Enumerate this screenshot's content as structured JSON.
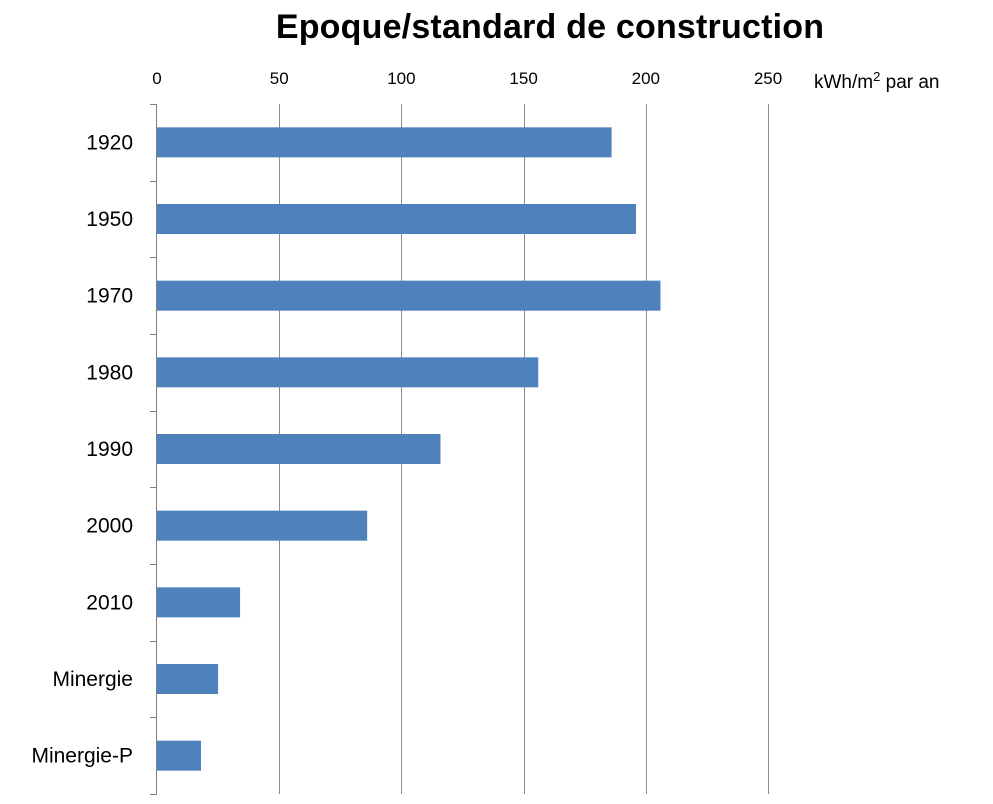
{
  "chart_data": {
    "type": "bar",
    "orientation": "horizontal",
    "title": "Epoque/standard de construction",
    "xlabel": "kWh/m² par an",
    "ylabel": "",
    "categories": [
      "1920",
      "1950",
      "1970",
      "1980",
      "1990",
      "2000",
      "2010",
      "Minergie",
      "Minergie-P"
    ],
    "values": [
      186,
      196,
      206,
      156,
      116,
      86,
      34,
      25,
      18
    ],
    "xlim": [
      0,
      250
    ],
    "x_ticks": [
      0,
      50,
      100,
      150,
      200,
      250
    ],
    "x_axis_position": "top",
    "grid": "vertical",
    "legend": "none",
    "colors": {
      "bar": "#4f81bd",
      "grid": "#8c8c8c",
      "axis": "#7f7f7f"
    }
  },
  "unit_label": {
    "main": "kWh/m",
    "superscript": "2",
    "suffix": " par an"
  }
}
